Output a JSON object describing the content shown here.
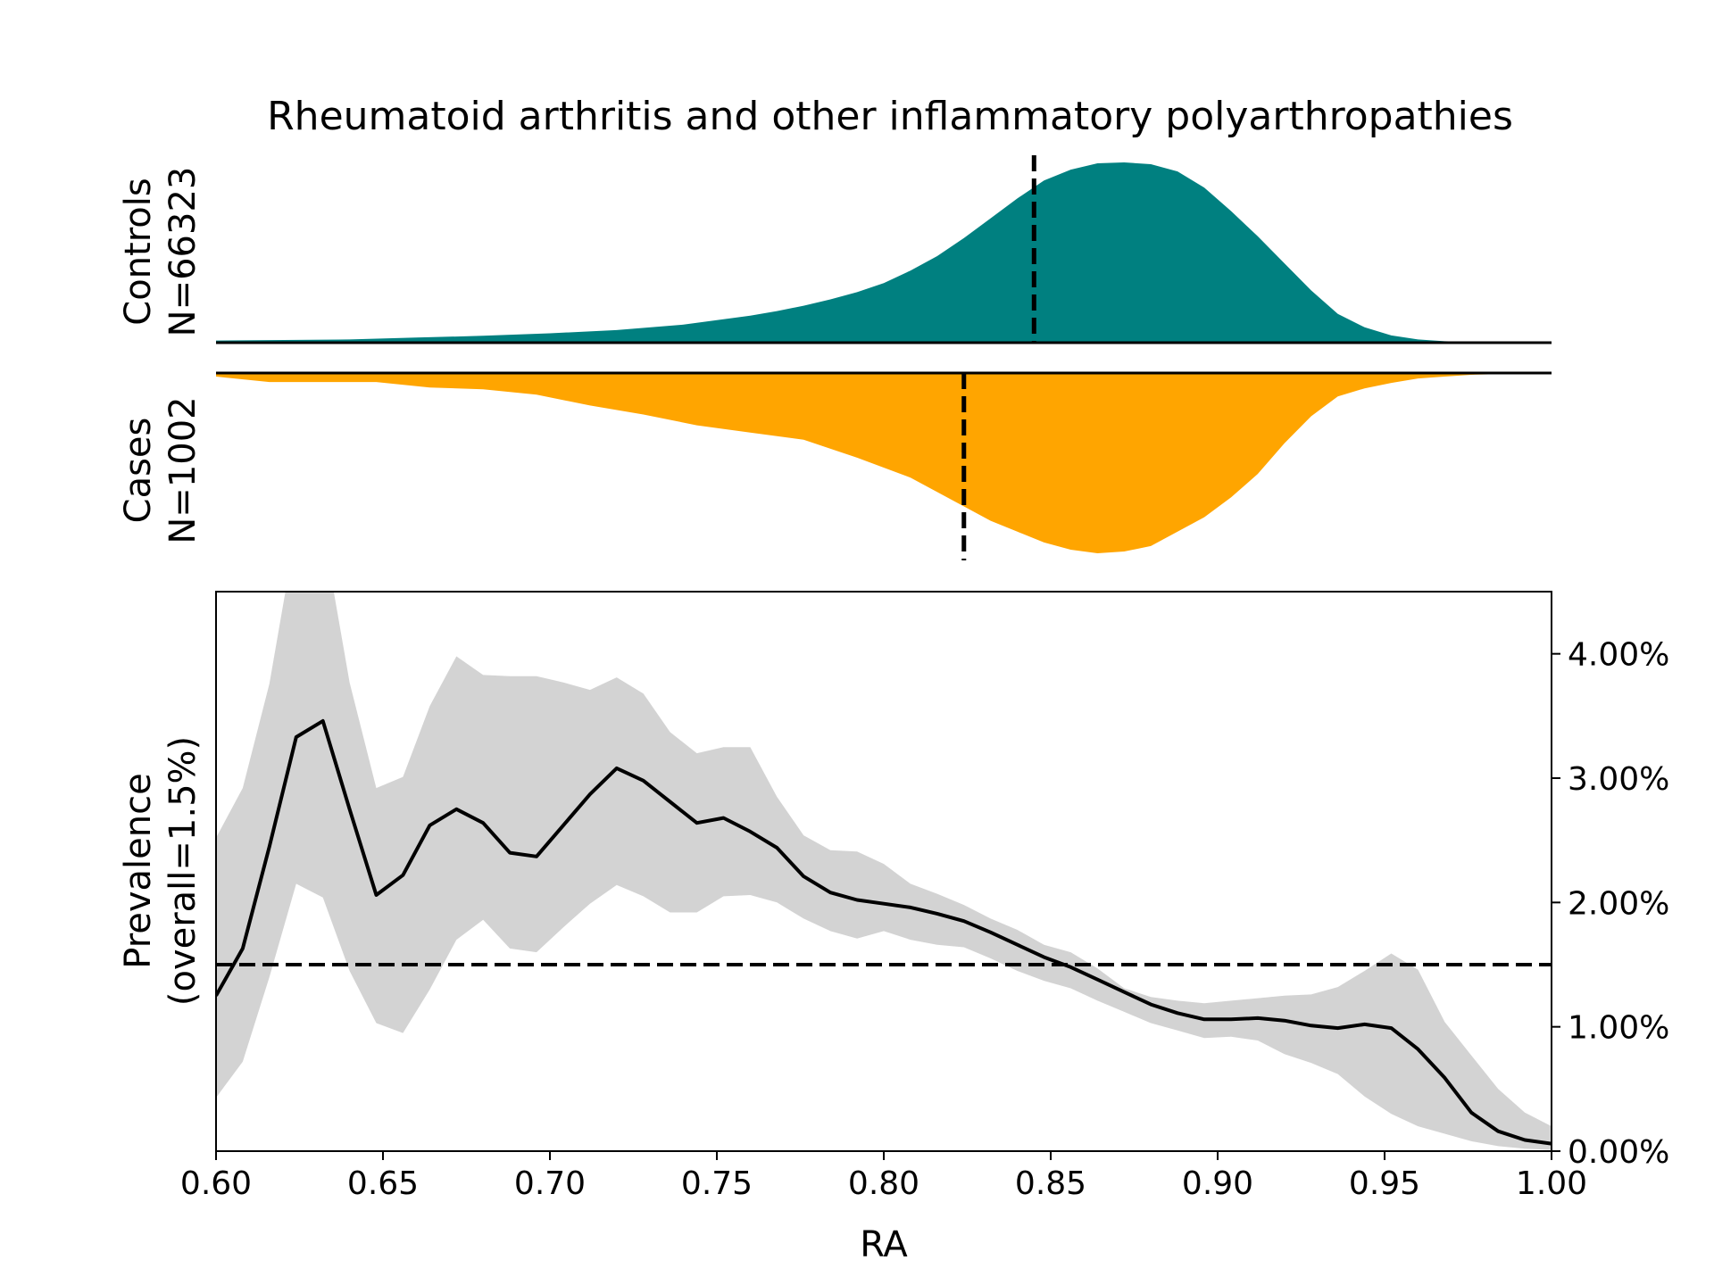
{
  "chart_data": {
    "title": "Rheumatoid arthritis and other inflammatory polyarthropathies",
    "xlabel": "RA",
    "xlim": [
      0.6,
      1.0
    ],
    "xticks": [
      "0.60",
      "0.65",
      "0.70",
      "0.75",
      "0.80",
      "0.85",
      "0.90",
      "0.95",
      "1.00"
    ],
    "panels": [
      {
        "type": "area",
        "name": "controls_density",
        "label_line1": "Controls",
        "label_line2": "N=66323",
        "color": "#008080",
        "mean_line_x": 0.845,
        "x": [
          0.6,
          0.64,
          0.66,
          0.68,
          0.7,
          0.72,
          0.74,
          0.76,
          0.768,
          0.776,
          0.784,
          0.792,
          0.8,
          0.808,
          0.816,
          0.824,
          0.832,
          0.84,
          0.848,
          0.856,
          0.864,
          0.872,
          0.88,
          0.888,
          0.896,
          0.904,
          0.912,
          0.92,
          0.928,
          0.936,
          0.944,
          0.952,
          0.96,
          0.968,
          0.976,
          0.984,
          0.992,
          1.0
        ],
        "values": [
          0.012,
          0.018,
          0.028,
          0.038,
          0.052,
          0.07,
          0.1,
          0.15,
          0.175,
          0.205,
          0.24,
          0.28,
          0.33,
          0.4,
          0.48,
          0.58,
          0.69,
          0.8,
          0.9,
          0.96,
          0.995,
          1.0,
          0.99,
          0.95,
          0.86,
          0.73,
          0.59,
          0.44,
          0.29,
          0.16,
          0.085,
          0.04,
          0.018,
          0.008,
          0.004,
          0.002,
          0.001,
          0.0
        ]
      },
      {
        "type": "area",
        "name": "cases_density",
        "label_line1": "Cases",
        "label_line2": "N=1002",
        "color": "#FFA500",
        "mean_line_x": 0.824,
        "x": [
          0.6,
          0.616,
          0.632,
          0.648,
          0.664,
          0.68,
          0.696,
          0.712,
          0.728,
          0.744,
          0.76,
          0.776,
          0.792,
          0.808,
          0.824,
          0.832,
          0.84,
          0.848,
          0.856,
          0.864,
          0.872,
          0.88,
          0.888,
          0.896,
          0.904,
          0.912,
          0.92,
          0.928,
          0.936,
          0.944,
          0.952,
          0.96,
          0.968,
          0.976,
          0.984,
          0.992,
          1.0
        ],
        "values": [
          0.02,
          0.05,
          0.05,
          0.05,
          0.08,
          0.09,
          0.12,
          0.18,
          0.23,
          0.29,
          0.33,
          0.37,
          0.47,
          0.58,
          0.74,
          0.82,
          0.88,
          0.94,
          0.98,
          1.0,
          0.99,
          0.96,
          0.88,
          0.8,
          0.69,
          0.56,
          0.39,
          0.24,
          0.13,
          0.085,
          0.055,
          0.03,
          0.02,
          0.01,
          0.006,
          0.003,
          0.0
        ]
      },
      {
        "type": "line",
        "name": "prevalence",
        "ylabel_line1": "Prevalence",
        "ylabel_line2": "(overall=1.5%)",
        "ylim": [
          0,
          0.045
        ],
        "yticks": [
          0.0,
          0.01,
          0.02,
          0.03,
          0.04
        ],
        "ytick_labels": [
          "0.00%",
          "1.00%",
          "2.00%",
          "3.00%",
          "4.00%"
        ],
        "overall_prevalence": 0.015,
        "line_color": "#000000",
        "band_color": "#d3d3d3",
        "x": [
          0.6,
          0.608,
          0.616,
          0.624,
          0.632,
          0.64,
          0.648,
          0.656,
          0.664,
          0.672,
          0.68,
          0.688,
          0.696,
          0.704,
          0.712,
          0.72,
          0.728,
          0.736,
          0.744,
          0.752,
          0.76,
          0.768,
          0.776,
          0.784,
          0.792,
          0.8,
          0.808,
          0.816,
          0.824,
          0.832,
          0.84,
          0.848,
          0.856,
          0.864,
          0.872,
          0.88,
          0.888,
          0.896,
          0.904,
          0.912,
          0.92,
          0.928,
          0.936,
          0.944,
          0.952,
          0.96,
          0.968,
          0.976,
          0.984,
          0.992,
          1.0
        ],
        "values": [
          0.0125,
          0.0163,
          0.0245,
          0.0333,
          0.0346,
          0.0275,
          0.0206,
          0.0222,
          0.0262,
          0.0275,
          0.0264,
          0.024,
          0.0237,
          0.0262,
          0.0287,
          0.0308,
          0.0298,
          0.0281,
          0.0264,
          0.0268,
          0.0257,
          0.0244,
          0.0221,
          0.0208,
          0.0202,
          0.0199,
          0.0196,
          0.0191,
          0.0185,
          0.0176,
          0.0166,
          0.0156,
          0.0148,
          0.0138,
          0.0128,
          0.0118,
          0.0111,
          0.0106,
          0.0106,
          0.0107,
          0.0105,
          0.0101,
          0.0099,
          0.0102,
          0.0099,
          0.0082,
          0.0059,
          0.0031,
          0.0016,
          0.0009,
          0.0006
        ],
        "lower": [
          0.0043,
          0.0072,
          0.014,
          0.0215,
          0.0204,
          0.0145,
          0.0103,
          0.0095,
          0.013,
          0.017,
          0.0186,
          0.0163,
          0.016,
          0.018,
          0.0199,
          0.0214,
          0.0205,
          0.0192,
          0.0192,
          0.0205,
          0.0206,
          0.02,
          0.0187,
          0.0177,
          0.0171,
          0.0177,
          0.017,
          0.0166,
          0.0164,
          0.0155,
          0.0145,
          0.0137,
          0.0131,
          0.0121,
          0.0112,
          0.0103,
          0.0097,
          0.0091,
          0.0092,
          0.0089,
          0.0078,
          0.0071,
          0.0062,
          0.0044,
          0.003,
          0.002,
          0.0014,
          0.0008,
          0.0004,
          0.0002,
          0.0001
        ],
        "upper": [
          0.0252,
          0.0292,
          0.0376,
          0.05,
          0.05,
          0.0377,
          0.0292,
          0.0301,
          0.0358,
          0.0398,
          0.0383,
          0.0382,
          0.0382,
          0.0377,
          0.0371,
          0.0381,
          0.0368,
          0.0337,
          0.032,
          0.0325,
          0.0325,
          0.0285,
          0.0254,
          0.0242,
          0.0241,
          0.0231,
          0.0215,
          0.0207,
          0.0198,
          0.0187,
          0.0178,
          0.0166,
          0.016,
          0.0147,
          0.0131,
          0.0124,
          0.0121,
          0.0119,
          0.0121,
          0.0123,
          0.0125,
          0.0126,
          0.0132,
          0.0145,
          0.0159,
          0.0146,
          0.0104,
          0.0077,
          0.005,
          0.0031,
          0.002
        ]
      }
    ]
  }
}
